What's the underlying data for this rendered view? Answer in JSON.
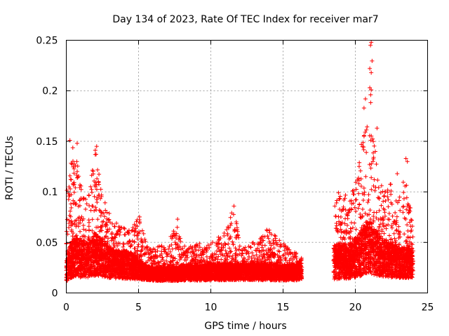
{
  "chart_data": {
    "type": "scatter",
    "title": "Day 134 of 2023, Rate Of TEC Index for receiver mar7",
    "xlabel": "GPS time / hours",
    "ylabel": "ROTI / TECUs",
    "xlim": [
      0,
      25
    ],
    "ylim": [
      0,
      0.25
    ],
    "xticks": [
      0,
      5,
      10,
      15,
      20,
      25
    ],
    "xtick_labels": [
      "0",
      "5",
      "10",
      "15",
      "20",
      "25"
    ],
    "yticks": [
      0,
      0.05,
      0.1,
      0.15,
      0.2,
      0.25
    ],
    "ytick_labels": [
      "0",
      "0.05",
      "0.1",
      "0.15",
      "0.2",
      "0.25"
    ],
    "grid": true,
    "marker": "+",
    "series_color": "#ff0000",
    "series": [
      {
        "name": "ROTI",
        "segments": [
          {
            "x_range": [
              0.0,
              16.3
            ],
            "note": "continuous coverage"
          },
          {
            "x_range": [
              18.5,
              24.0
            ],
            "note": "continuous coverage"
          }
        ],
        "envelope": [
          {
            "x": 0.0,
            "low": 0.006,
            "typ": 0.025,
            "high": 0.1
          },
          {
            "x": 0.5,
            "low": 0.008,
            "typ": 0.035,
            "high": 0.15
          },
          {
            "x": 1.0,
            "low": 0.007,
            "typ": 0.035,
            "high": 0.11
          },
          {
            "x": 1.5,
            "low": 0.008,
            "typ": 0.032,
            "high": 0.09
          },
          {
            "x": 2.0,
            "low": 0.008,
            "typ": 0.038,
            "high": 0.145
          },
          {
            "x": 2.5,
            "low": 0.008,
            "typ": 0.035,
            "high": 0.1
          },
          {
            "x": 3.0,
            "low": 0.008,
            "typ": 0.03,
            "high": 0.08
          },
          {
            "x": 3.5,
            "low": 0.008,
            "typ": 0.028,
            "high": 0.07
          },
          {
            "x": 4.0,
            "low": 0.008,
            "typ": 0.028,
            "high": 0.065
          },
          {
            "x": 4.5,
            "low": 0.008,
            "typ": 0.027,
            "high": 0.065
          },
          {
            "x": 5.0,
            "low": 0.009,
            "typ": 0.024,
            "high": 0.08
          },
          {
            "x": 5.5,
            "low": 0.01,
            "typ": 0.02,
            "high": 0.05
          },
          {
            "x": 6.0,
            "low": 0.009,
            "typ": 0.019,
            "high": 0.045
          },
          {
            "x": 7.0,
            "low": 0.009,
            "typ": 0.019,
            "high": 0.048
          },
          {
            "x": 7.7,
            "low": 0.009,
            "typ": 0.019,
            "high": 0.073
          },
          {
            "x": 8.0,
            "low": 0.009,
            "typ": 0.02,
            "high": 0.048
          },
          {
            "x": 9.0,
            "low": 0.009,
            "typ": 0.02,
            "high": 0.05
          },
          {
            "x": 10.0,
            "low": 0.009,
            "typ": 0.021,
            "high": 0.05
          },
          {
            "x": 11.0,
            "low": 0.009,
            "typ": 0.021,
            "high": 0.06
          },
          {
            "x": 11.6,
            "low": 0.009,
            "typ": 0.021,
            "high": 0.086
          },
          {
            "x": 12.0,
            "low": 0.009,
            "typ": 0.021,
            "high": 0.05
          },
          {
            "x": 13.0,
            "low": 0.009,
            "typ": 0.021,
            "high": 0.05
          },
          {
            "x": 14.0,
            "low": 0.009,
            "typ": 0.021,
            "high": 0.065
          },
          {
            "x": 15.0,
            "low": 0.009,
            "typ": 0.02,
            "high": 0.05
          },
          {
            "x": 16.3,
            "low": 0.009,
            "typ": 0.021,
            "high": 0.035
          },
          {
            "x": 18.5,
            "low": 0.006,
            "typ": 0.03,
            "high": 0.09
          },
          {
            "x": 19.0,
            "low": 0.006,
            "typ": 0.032,
            "high": 0.11
          },
          {
            "x": 19.5,
            "low": 0.007,
            "typ": 0.03,
            "high": 0.09
          },
          {
            "x": 20.0,
            "low": 0.007,
            "typ": 0.035,
            "high": 0.11
          },
          {
            "x": 20.5,
            "low": 0.007,
            "typ": 0.04,
            "high": 0.155
          },
          {
            "x": 20.8,
            "low": 0.008,
            "typ": 0.045,
            "high": 0.19
          },
          {
            "x": 21.1,
            "low": 0.008,
            "typ": 0.045,
            "high": 0.248
          },
          {
            "x": 21.5,
            "low": 0.008,
            "typ": 0.038,
            "high": 0.12
          },
          {
            "x": 22.0,
            "low": 0.008,
            "typ": 0.035,
            "high": 0.1
          },
          {
            "x": 22.5,
            "low": 0.008,
            "typ": 0.032,
            "high": 0.11
          },
          {
            "x": 23.0,
            "low": 0.008,
            "typ": 0.03,
            "high": 0.09
          },
          {
            "x": 23.5,
            "low": 0.008,
            "typ": 0.03,
            "high": 0.13
          },
          {
            "x": 24.0,
            "low": 0.009,
            "typ": 0.028,
            "high": 0.06
          }
        ],
        "notable_points": [
          {
            "x": 0.75,
            "y": 0.148
          },
          {
            "x": 0.25,
            "y": 0.151
          },
          {
            "x": 2.1,
            "y": 0.145
          },
          {
            "x": 7.7,
            "y": 0.073
          },
          {
            "x": 11.6,
            "y": 0.086
          },
          {
            "x": 20.6,
            "y": 0.183
          },
          {
            "x": 20.7,
            "y": 0.192
          },
          {
            "x": 21.0,
            "y": 0.203
          },
          {
            "x": 21.0,
            "y": 0.222
          },
          {
            "x": 21.1,
            "y": 0.218
          },
          {
            "x": 21.05,
            "y": 0.245
          },
          {
            "x": 21.1,
            "y": 0.248
          },
          {
            "x": 21.5,
            "y": 0.163
          },
          {
            "x": 23.5,
            "y": 0.133
          },
          {
            "x": 23.6,
            "y": 0.13
          },
          {
            "x": 22.9,
            "y": 0.118
          }
        ]
      }
    ]
  }
}
